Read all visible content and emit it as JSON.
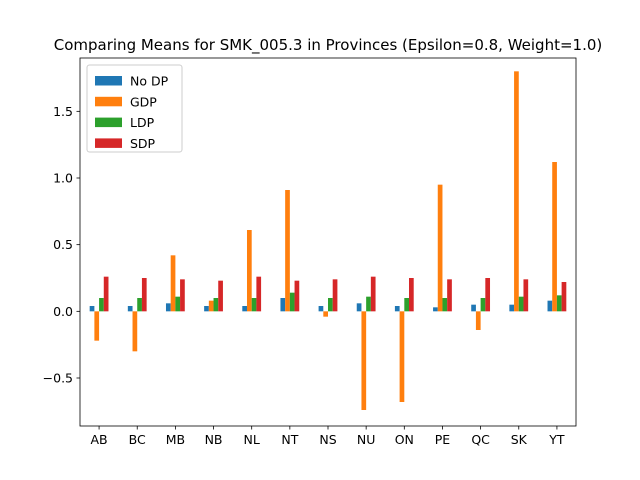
{
  "chart_data": {
    "type": "bar",
    "title": "Comparing Means for SMK_005.3 in Provinces (Epsilon=0.8, Weight=1.0)",
    "xlabel": "",
    "ylabel": "",
    "categories": [
      "AB",
      "BC",
      "MB",
      "NB",
      "NL",
      "NT",
      "NS",
      "NU",
      "ON",
      "PE",
      "QC",
      "SK",
      "YT"
    ],
    "ylim": [
      -0.86,
      1.9
    ],
    "yticks": [
      -0.5,
      0.0,
      0.5,
      1.0,
      1.5
    ],
    "ytick_labels": [
      "−0.5",
      "0.0",
      "0.5",
      "1.0",
      "1.5"
    ],
    "grid": false,
    "legend_position": "top-left",
    "series": [
      {
        "name": "No DP",
        "color": "#1f77b4",
        "values": [
          0.04,
          0.04,
          0.06,
          0.04,
          0.04,
          0.1,
          0.04,
          0.06,
          0.04,
          0.03,
          0.05,
          0.05,
          0.08
        ]
      },
      {
        "name": "GDP",
        "color": "#ff7f0e",
        "values": [
          -0.22,
          -0.3,
          0.42,
          0.08,
          0.61,
          0.91,
          -0.04,
          -0.74,
          -0.68,
          0.95,
          -0.14,
          1.8,
          1.12
        ]
      },
      {
        "name": "LDP",
        "color": "#2ca02c",
        "values": [
          0.1,
          0.1,
          0.11,
          0.1,
          0.1,
          0.14,
          0.1,
          0.11,
          0.1,
          0.1,
          0.1,
          0.11,
          0.12
        ]
      },
      {
        "name": "SDP",
        "color": "#d62728",
        "values": [
          0.26,
          0.25,
          0.24,
          0.23,
          0.26,
          0.23,
          0.24,
          0.26,
          0.25,
          0.24,
          0.25,
          0.24,
          0.22
        ]
      }
    ]
  }
}
